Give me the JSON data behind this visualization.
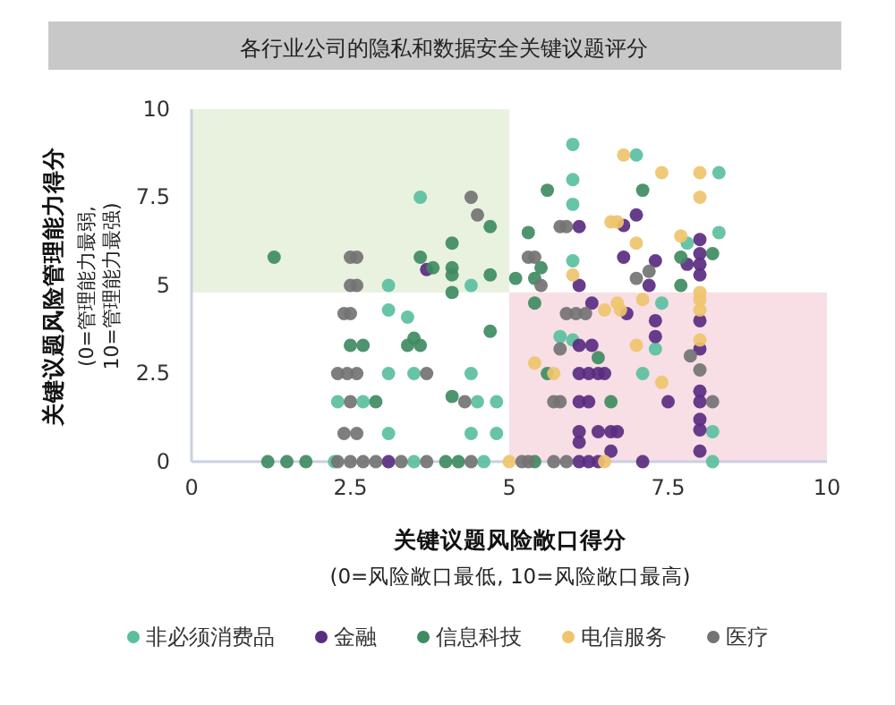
{
  "chart_data": {
    "type": "scatter",
    "title": "各行业公司的隐私和数据安全关键议题评分",
    "xlabel": "关键议题风险敞口得分",
    "ylabel": "关键议题风险管理能力得分",
    "annotations": [
      "(0=风险敞口最低, 10=风险敞口最高)",
      "(0=管理能力最弱, 10=管理能力最强)"
    ],
    "xlim": [
      0,
      10
    ],
    "ylim": [
      0,
      10
    ],
    "xticks": [
      0,
      2.5,
      5,
      7.5,
      10
    ],
    "yticks": [
      0,
      2.5,
      5,
      7.5,
      10
    ],
    "grid": false,
    "legend": "bottom",
    "marker": "circle",
    "bands": [
      {
        "axis": "x",
        "from": 0,
        "to": 5,
        "color": "#e9f2df"
      },
      {
        "axis": "y",
        "from": 0,
        "to": 4.8,
        "color": "#f7dfe5"
      }
    ],
    "series": [
      {
        "name": "非必须消费品",
        "color": "#5bbf9f",
        "x": [
          3.6,
          3.1,
          4.4,
          6.0,
          7.0,
          8.3,
          6.0,
          6.0,
          8.3,
          7.8,
          6.0,
          3.1,
          3.4,
          3.1,
          3.5,
          4.4,
          2.3,
          2.7,
          4.5,
          4.8,
          3.1,
          4.4,
          4.8,
          2.25,
          3.5,
          4.6,
          7.4,
          5.8,
          6.0,
          7.3,
          7.1,
          8.2,
          8.2
        ],
        "values": [
          7.5,
          5.0,
          5.0,
          9.0,
          8.7,
          8.2,
          8.0,
          7.3,
          6.5,
          6.2,
          5.7,
          4.3,
          4.1,
          2.5,
          2.5,
          2.5,
          1.7,
          1.7,
          1.7,
          1.7,
          0.8,
          0.8,
          0.8,
          0,
          0,
          0,
          4.5,
          3.55,
          3.45,
          3.2,
          2.5,
          0.85,
          0
        ]
      },
      {
        "name": "金融",
        "color": "#5a2d81",
        "x": [
          3.7,
          7.0,
          6.8,
          6.1,
          8.0,
          8.0,
          6.8,
          7.3,
          7.8,
          8.0,
          8.0,
          6.1,
          7.2,
          3.1,
          6.3,
          6.85,
          8.0,
          7.3,
          6.1,
          6.3,
          7.3,
          8.0,
          6.1,
          6.25,
          6.4,
          6.5,
          8.0,
          8.0,
          6.1,
          6.25,
          7.5,
          8.0,
          8.0,
          6.1,
          6.1,
          6.4,
          6.6,
          6.7,
          6.6,
          6.1,
          6.25,
          6.4,
          7.1,
          8.0
        ],
        "values": [
          5.45,
          7.0,
          6.7,
          6.67,
          6.3,
          5.9,
          5.8,
          5.7,
          5.6,
          5.6,
          5.3,
          5.0,
          5.0,
          0,
          4.5,
          4.2,
          4.0,
          4.0,
          3.3,
          3.3,
          3.55,
          3.2,
          2.5,
          2.5,
          2.5,
          2.5,
          2.0,
          1.7,
          1.7,
          1.7,
          1.7,
          1.2,
          0.9,
          0.85,
          0.55,
          0.85,
          0.85,
          0.85,
          0.3,
          0,
          0,
          0,
          0,
          0.3
        ]
      },
      {
        "name": "信息科技",
        "color": "#3f8b62",
        "x": [
          4.7,
          4.1,
          1.3,
          3.6,
          3.8,
          4.1,
          4.1,
          4.7,
          5.1,
          4.1,
          5.6,
          7.1,
          5.3,
          7.7,
          8.2,
          5.5,
          5.4,
          7.7,
          4.7,
          2.5,
          2.7,
          3.4,
          3.5,
          3.6,
          2.9,
          4.1,
          1.2,
          1.5,
          1.8,
          4.0,
          4.2,
          5.4,
          6.4,
          5.6,
          6.6,
          5.4
        ],
        "values": [
          6.67,
          6.2,
          5.8,
          5.8,
          5.5,
          5.5,
          5.3,
          5.3,
          5.2,
          4.8,
          7.7,
          7.7,
          6.5,
          5.8,
          5.9,
          5.5,
          5.2,
          5.0,
          3.7,
          3.3,
          3.3,
          3.3,
          3.5,
          3.3,
          1.7,
          1.85,
          0,
          0,
          0,
          0,
          0,
          4.5,
          2.95,
          2.5,
          1.7,
          0
        ]
      },
      {
        "name": "电信服务",
        "color": "#efc46c",
        "x": [
          6.8,
          7.4,
          8.0,
          8.0,
          6.6,
          6.7,
          7.7,
          7.0,
          6.0,
          8.0,
          5.0,
          6.5,
          6.7,
          6.75,
          7.1,
          8.0,
          8.0,
          7.0,
          8.0,
          5.4,
          5.7,
          7.4,
          6.5
        ],
        "values": [
          8.7,
          8.2,
          8.2,
          7.5,
          6.8,
          6.8,
          6.4,
          6.2,
          5.3,
          4.8,
          0,
          4.3,
          4.5,
          4.3,
          4.6,
          4.6,
          4.3,
          3.3,
          3.45,
          2.8,
          2.5,
          2.25,
          0
        ]
      },
      {
        "name": "医疗",
        "color": "#737373",
        "x": [
          4.4,
          4.5,
          2.5,
          2.6,
          2.5,
          2.6,
          5.8,
          5.9,
          5.3,
          5.4,
          7.0,
          7.2,
          5.5,
          2.4,
          2.5,
          2.3,
          2.45,
          2.6,
          3.7,
          2.5,
          4.3,
          2.4,
          2.6,
          2.3,
          2.5,
          2.7,
          2.9,
          3.3,
          3.7,
          4.4,
          5.9,
          6.05,
          6.2,
          5.8,
          7.85,
          8.0,
          8.2,
          5.7,
          5.8,
          5.2,
          5.3,
          5.7,
          5.9
        ],
        "values": [
          7.5,
          7.0,
          5.8,
          5.8,
          5.0,
          5.0,
          6.67,
          6.67,
          5.8,
          5.8,
          5.2,
          5.4,
          5.0,
          4.2,
          4.2,
          2.5,
          2.5,
          2.5,
          2.5,
          1.7,
          1.7,
          0.8,
          0.8,
          0,
          0,
          0,
          0,
          0,
          0,
          0,
          4.2,
          4.2,
          4.2,
          3.2,
          3.0,
          2.6,
          1.7,
          1.7,
          1.7,
          0,
          0,
          0,
          0
        ]
      }
    ]
  }
}
